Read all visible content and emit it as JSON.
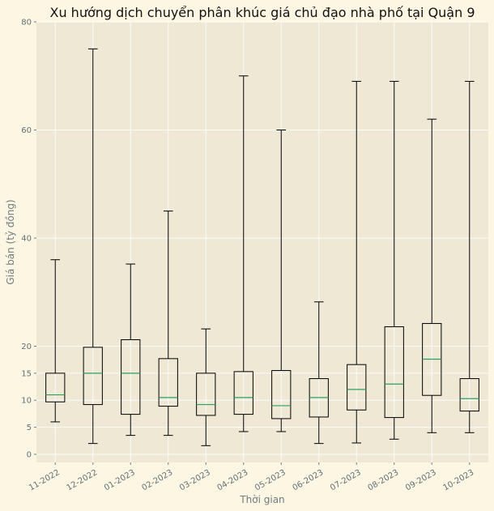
{
  "chart_data": {
    "type": "box",
    "title": "Xu hướng dịch chuyển phân khúc giá chủ đạo nhà phố tại Quận 9",
    "xlabel": "Thời gian",
    "ylabel": "Giá bán (tỷ đồng)",
    "ylim": [
      -1.5,
      80
    ],
    "yticks": [
      0,
      5,
      10,
      15,
      20,
      40,
      60,
      80
    ],
    "grid": true,
    "categories": [
      "11-2022",
      "12-2022",
      "01-2023",
      "02-2023",
      "03-2023",
      "04-2023",
      "05-2023",
      "06-2023",
      "07-2023",
      "08-2023",
      "09-2023",
      "10-2023"
    ],
    "boxes": [
      {
        "min": 6.0,
        "q1": 9.7,
        "median": 11.0,
        "q3": 15.0,
        "max": 36.0
      },
      {
        "min": 2.0,
        "q1": 9.2,
        "median": 15.0,
        "q3": 19.8,
        "max": 75.0
      },
      {
        "min": 3.5,
        "q1": 7.4,
        "median": 15.0,
        "q3": 21.2,
        "max": 35.2
      },
      {
        "min": 3.5,
        "q1": 8.9,
        "median": 10.5,
        "q3": 17.7,
        "max": 45.0
      },
      {
        "min": 1.6,
        "q1": 7.2,
        "median": 9.2,
        "q3": 15.0,
        "max": 23.2
      },
      {
        "min": 4.2,
        "q1": 7.4,
        "median": 10.5,
        "q3": 15.3,
        "max": 70.0
      },
      {
        "min": 4.2,
        "q1": 6.6,
        "median": 9.0,
        "q3": 15.5,
        "max": 60.0
      },
      {
        "min": 2.0,
        "q1": 6.9,
        "median": 10.5,
        "q3": 14.0,
        "max": 28.2
      },
      {
        "min": 2.1,
        "q1": 8.2,
        "median": 12.0,
        "q3": 16.6,
        "max": 69.0
      },
      {
        "min": 2.8,
        "q1": 6.8,
        "median": 13.0,
        "q3": 23.6,
        "max": 69.0
      },
      {
        "min": 4.0,
        "q1": 10.9,
        "median": 17.6,
        "q3": 24.2,
        "max": 62.0
      },
      {
        "min": 4.0,
        "q1": 8.0,
        "median": 10.3,
        "q3": 14.0,
        "max": 69.0
      }
    ]
  }
}
